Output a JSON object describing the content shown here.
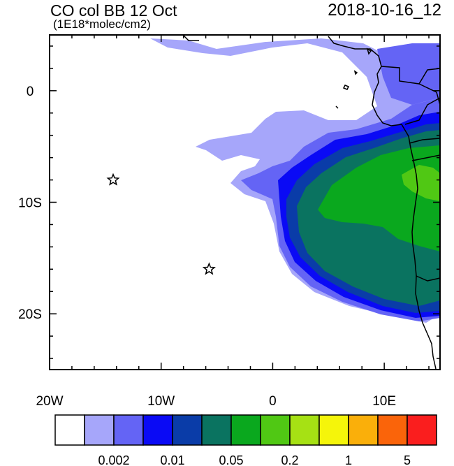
{
  "header": {
    "title": "CO col BB 12 Oct",
    "subtitle": "(1E18*molec/cm2)",
    "datetime": "2018-10-16_12"
  },
  "map": {
    "lon_range": [
      -20,
      15
    ],
    "lat_range": [
      -25,
      5
    ],
    "x_ticks": [
      {
        "value": -20,
        "label": "20W"
      },
      {
        "value": -10,
        "label": "10W"
      },
      {
        "value": 0,
        "label": "0"
      },
      {
        "value": 10,
        "label": "10E"
      }
    ],
    "y_ticks": [
      {
        "value": 0,
        "label": "0"
      },
      {
        "value": -10,
        "label": "10S"
      },
      {
        "value": -20,
        "label": "20S"
      }
    ],
    "markers": [
      {
        "name": "star-marker-1",
        "lon": -14.3,
        "lat": -8.0,
        "symbol": "star"
      },
      {
        "name": "star-marker-2",
        "lon": -5.7,
        "lat": -16.0,
        "symbol": "star"
      }
    ]
  },
  "colorbar": {
    "colors": [
      "#ffffff",
      "#a6a6fa",
      "#6464f5",
      "#0a0af5",
      "#0a3ca8",
      "#0a7360",
      "#0aa81e",
      "#50c814",
      "#a6e114",
      "#f5f50a",
      "#faaf0a",
      "#fa640a",
      "#fa1e1e"
    ],
    "labels": [
      {
        "boundary": 2,
        "text": "0.002"
      },
      {
        "boundary": 4,
        "text": "0.01"
      },
      {
        "boundary": 6,
        "text": "0.05"
      },
      {
        "boundary": 8,
        "text": "0.2"
      },
      {
        "boundary": 10,
        "text": "1"
      },
      {
        "boundary": 12,
        "text": "5"
      }
    ]
  }
}
